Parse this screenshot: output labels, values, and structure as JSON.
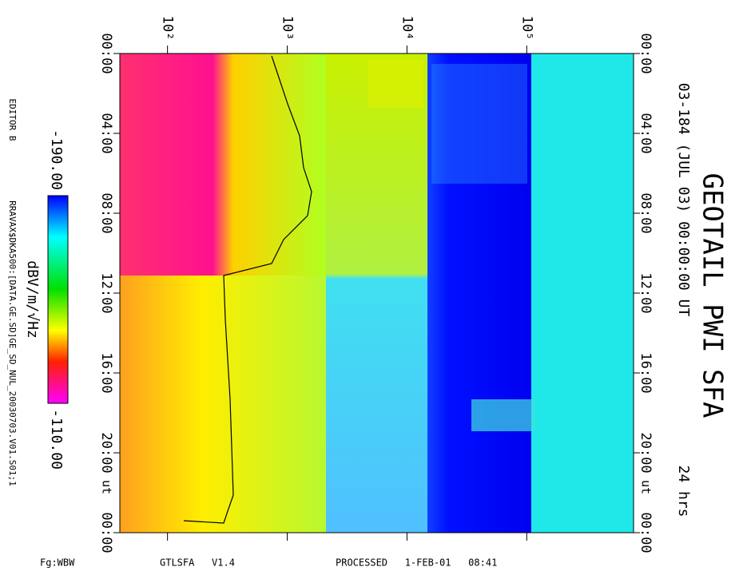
{
  "chart_data": {
    "type": "spectrogram",
    "title": "GEOTAIL PWI SFA",
    "subtitle": "03-184 (JUL 03) 00:00:00 UT",
    "duration": "24 hrs",
    "time_unit": "ut",
    "xscale": "log",
    "xlim": [
      40,
      780000
    ],
    "xticks": [
      {
        "value": 100,
        "label": "10²"
      },
      {
        "value": 1000,
        "label": "10³"
      },
      {
        "value": 10000,
        "label": "10⁴"
      },
      {
        "value": 100000,
        "label": "10⁵"
      }
    ],
    "ylim": [
      0,
      24
    ],
    "yticks": [
      {
        "value": 0,
        "label": "00:00"
      },
      {
        "value": 4,
        "label": "04:00"
      },
      {
        "value": 8,
        "label": "08:00"
      },
      {
        "value": 12,
        "label": "12:00"
      },
      {
        "value": 16,
        "label": "16:00"
      },
      {
        "value": 20,
        "label": "20:00"
      },
      {
        "value": 24,
        "label": "00:00"
      }
    ],
    "colorbar": {
      "label": "dBV/m/√Hz",
      "ticks": [
        {
          "value": -190,
          "label": "-190.00"
        },
        {
          "value": -110,
          "label": "-110.00"
        }
      ]
    },
    "editor": "EDITOR B",
    "source_file": "RRAVAX$DKA500:[DATA.GE.SD]GE_SD_NUL_20030703.V01.S01;1",
    "footer": {
      "mode": "Fg:WBW",
      "program": "GTLSFA   V1.4",
      "processed": "PROCESSED   1-FEB-01   08:41"
    }
  }
}
